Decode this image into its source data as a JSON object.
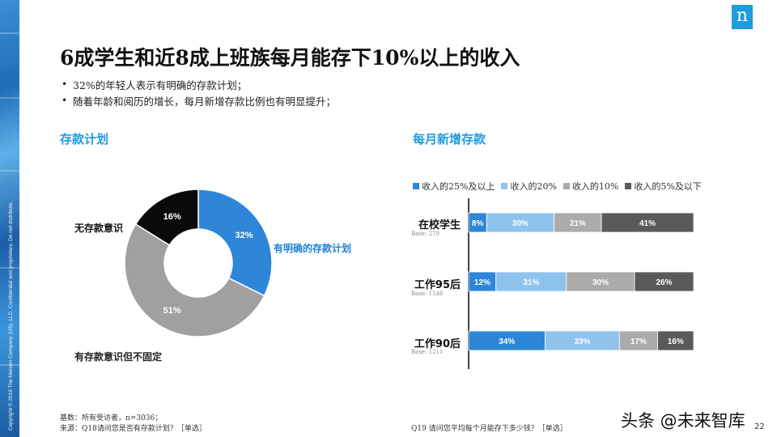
{
  "brand": {
    "logo_letter": "n",
    "copyright": "Copyright © 2019 The Nielsen Company (US), LLC. Confidential and proprietary. Do not distribute."
  },
  "title": "6成学生和近8成上班族每月能存下10%以上的收入",
  "bullets": [
    "32%的年轻人表示有明确的存款计划；",
    "随着年龄和阅历的增长，每月新增存款比例也有明显提升；"
  ],
  "left_section": {
    "title": "存款计划"
  },
  "right_section": {
    "title": "每月新增存款"
  },
  "chart_data": [
    {
      "type": "pie",
      "style": "donut",
      "title": "存款计划",
      "slices": [
        {
          "name": "有明确的存款计划",
          "value": 32,
          "label": "32%",
          "color": "#2e86d8"
        },
        {
          "name": "有存款意识但不固定",
          "value": 51,
          "label": "51%",
          "color": "#a0a0a0"
        },
        {
          "name": "无存款意识",
          "value": 16,
          "label": "16%",
          "color": "#0a0a0a"
        }
      ]
    },
    {
      "type": "bar",
      "orientation": "horizontal",
      "stacked": true,
      "title": "每月新增存款",
      "legend_position": "top",
      "categories": [
        "在校学生",
        "工作95后",
        "工作90后"
      ],
      "bases": [
        "Base: 279",
        "Base: 1546",
        "Base: 1211"
      ],
      "xlim": [
        0,
        100
      ],
      "series": [
        {
          "name": "收入的25%及以上",
          "color": "#2e86d8",
          "values": [
            8,
            12,
            34
          ],
          "labels": [
            "8%",
            "12%",
            "34%"
          ]
        },
        {
          "name": "收入的20%",
          "color": "#8ec3ee",
          "values": [
            30,
            31,
            33
          ],
          "labels": [
            "30%",
            "31%",
            "33%"
          ]
        },
        {
          "name": "收入的10%",
          "color": "#ababab",
          "values": [
            21,
            30,
            17
          ],
          "labels": [
            "21%",
            "30%",
            "17%"
          ]
        },
        {
          "name": "收入的5%及以下",
          "color": "#5a5a5a",
          "values": [
            41,
            26,
            16
          ],
          "labels": [
            "41%",
            "26%",
            "16%"
          ]
        }
      ]
    }
  ],
  "footer": {
    "base_note": "基数：所有受访者，n=3036；",
    "source_left": "来源：Q18请问您是否有存款计划？［单选］",
    "source_right": "Q19 请问您平均每个月能存下多少钱？［单选］"
  },
  "watermark": "头条 @未来智库",
  "page_number": "22"
}
